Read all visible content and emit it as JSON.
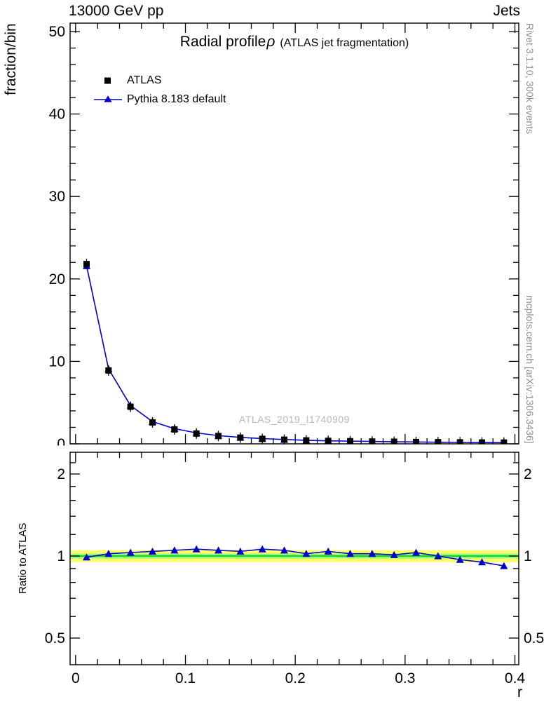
{
  "header": {
    "left": "13000 GeV pp",
    "right": "Jets"
  },
  "title": {
    "main": "Radial profile",
    "rho": "ρ",
    "sub": "(ATLAS jet fragmentation)"
  },
  "legend": {
    "items": [
      {
        "label": "ATLAS"
      },
      {
        "label": "Pythia 8.183 default"
      }
    ]
  },
  "watermark": "ATLAS_2019_I1740909",
  "side_notes": {
    "top": "Rivet 3.1.10,  300k events",
    "bottom": "mcplots.cern.ch [arXiv:1306.3436]"
  },
  "colors": {
    "atlas": "#000000",
    "pythia": "#0000cc",
    "band_outer": "#ffff66",
    "band_inner": "#85ff85",
    "band_line": "#00bb00",
    "grey_text": "#8e8e8e",
    "watermark_grey": "#b9b9b9"
  },
  "axes": {
    "main": {
      "y_title": "fraction/bin",
      "y_ticks": [
        0,
        10,
        20,
        30,
        40,
        50
      ],
      "y_tick_labels": [
        "0",
        "10",
        "20",
        "30",
        "40",
        "50"
      ],
      "x_ticks": [
        0,
        0.1,
        0.2,
        0.3,
        0.4
      ]
    },
    "ratio": {
      "y_title": "Ratio to ATLAS",
      "y_ticks": [
        0.5,
        1,
        2
      ],
      "y_tick_labels": [
        "0.5",
        "1",
        "2"
      ],
      "y_minor": [
        0.6,
        0.7,
        0.8,
        0.9,
        1.2,
        1.4,
        1.6,
        1.8,
        2.2
      ]
    },
    "x_tick_labels": [
      "0",
      "0.1",
      "0.2",
      "0.3",
      "0.4"
    ],
    "x_title": "r"
  },
  "chart_data": [
    {
      "type": "line",
      "title": "Radial profile ρ (ATLAS jet fragmentation)",
      "xlabel": "r",
      "ylabel": "fraction/bin",
      "xlim": [
        0,
        0.4
      ],
      "ylim": [
        0,
        50
      ],
      "legend_position": "top-left",
      "grid": false,
      "x": [
        0.01,
        0.03,
        0.05,
        0.07,
        0.09,
        0.11,
        0.13,
        0.15,
        0.17,
        0.19,
        0.21,
        0.23,
        0.25,
        0.27,
        0.29,
        0.31,
        0.33,
        0.35,
        0.37,
        0.39
      ],
      "series": [
        {
          "name": "ATLAS",
          "marker": "square",
          "color": "#000000",
          "values": [
            21.8,
            8.9,
            4.5,
            2.6,
            1.75,
            1.25,
            0.95,
            0.75,
            0.6,
            0.5,
            0.42,
            0.36,
            0.32,
            0.28,
            0.25,
            0.22,
            0.2,
            0.18,
            0.16,
            0.15
          ]
        },
        {
          "name": "Pythia 8.183 default",
          "marker": "triangle",
          "color": "#0000cc",
          "values": [
            21.58,
            9.08,
            4.64,
            2.7,
            1.84,
            1.33,
            1.0,
            0.78,
            0.64,
            0.53,
            0.43,
            0.37,
            0.33,
            0.29,
            0.25,
            0.23,
            0.2,
            0.17,
            0.15,
            0.14
          ]
        }
      ]
    },
    {
      "type": "line",
      "ylabel": "Ratio to ATLAS",
      "yscale": "log",
      "ylim": [
        0.4,
        2.4
      ],
      "x": [
        0.01,
        0.03,
        0.05,
        0.07,
        0.09,
        0.11,
        0.13,
        0.15,
        0.17,
        0.19,
        0.21,
        0.23,
        0.25,
        0.27,
        0.29,
        0.31,
        0.33,
        0.35,
        0.37,
        0.39
      ],
      "series": [
        {
          "name": "Pythia 8.183 default / ATLAS",
          "marker": "triangle",
          "color": "#0000cc",
          "values": [
            0.99,
            1.02,
            1.03,
            1.04,
            1.05,
            1.06,
            1.05,
            1.04,
            1.06,
            1.05,
            1.02,
            1.04,
            1.02,
            1.02,
            1.01,
            1.03,
            1.0,
            0.97,
            0.95,
            0.92
          ]
        }
      ],
      "bands": [
        {
          "label": "data uncertainty outer",
          "lo": 0.95,
          "hi": 1.05,
          "color": "#ffff66"
        },
        {
          "label": "data uncertainty inner",
          "lo": 0.98,
          "hi": 1.02,
          "color": "#85ff85"
        }
      ]
    }
  ]
}
